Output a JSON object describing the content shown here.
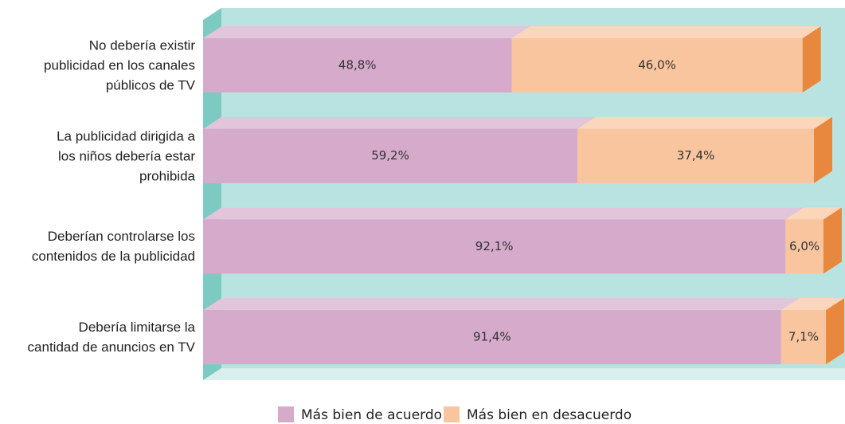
{
  "chart_data": {
    "type": "bar",
    "stacked": true,
    "orientation": "horizontal",
    "categories": [
      "No debería existir\npublicidad en los canales\npúblicos de TV",
      "La publicidad dirigida a\nlos niños debería estar\nprohibida",
      "Deberían controlarse los\ncontenidos de la publicidad",
      "Debería limitarse la\ncantidad de anuncios en TV"
    ],
    "series": [
      {
        "name": "Más bien de acuerdo",
        "color": "#d5aacb",
        "values": [
          48.8,
          59.2,
          92.1,
          91.4
        ],
        "value_labels": [
          "48,8%",
          "59,2%",
          "92,1%",
          "91,4%"
        ]
      },
      {
        "name": "Más bien en desacuerdo",
        "color": "#f9c59e",
        "values": [
          46.0,
          37.4,
          6.0,
          7.1
        ],
        "value_labels": [
          "46,0%",
          "37,4%",
          "6,0%",
          "7,1%"
        ]
      }
    ],
    "xlim": [
      0,
      100
    ],
    "legend": "bottom"
  }
}
